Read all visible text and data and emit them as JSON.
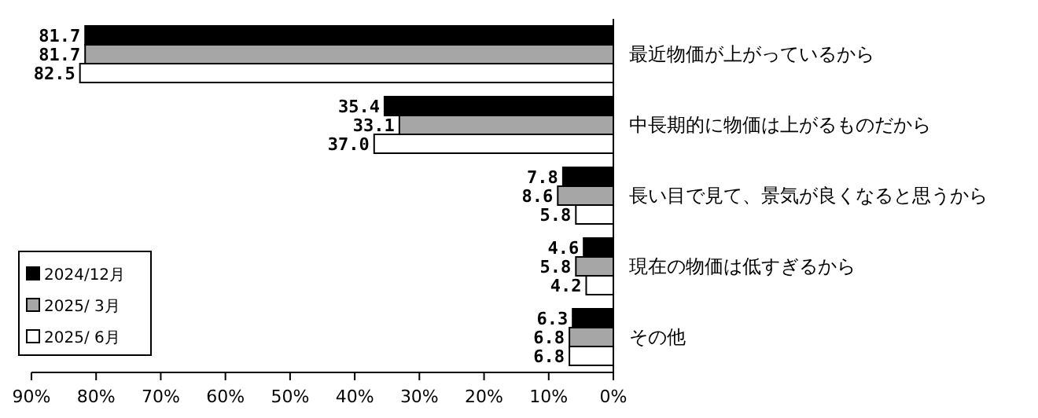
{
  "chart_data": {
    "type": "bar",
    "orientation": "horizontal",
    "categories": [
      "最近物価が上がっているから",
      "中長期的に物価は上がるものだから",
      "長い目で見て、景気が良くなると思うから",
      "現在の物価は低すぎるから",
      "その他"
    ],
    "series": [
      {
        "name": "2024/12月",
        "color": "#000000",
        "values": [
          81.7,
          35.4,
          7.8,
          4.6,
          6.3
        ],
        "value_labels": [
          "81.7",
          "35.4",
          "7.8",
          "4.6",
          "6.3"
        ]
      },
      {
        "name": "2025/ 3月",
        "color": "#a6a6a6",
        "values": [
          81.7,
          33.1,
          8.6,
          5.8,
          6.8
        ],
        "value_labels": [
          "81.7",
          "33.1",
          "8.6",
          "5.8",
          "6.8"
        ]
      },
      {
        "name": "2025/ 6月",
        "color": "#ffffff",
        "values": [
          82.5,
          37.0,
          5.8,
          4.2,
          6.8
        ],
        "value_labels": [
          "82.5",
          "37.0",
          "5.8",
          "4.2",
          "6.8"
        ]
      }
    ],
    "xlim": [
      90,
      0
    ],
    "xticks": [
      {
        "value": 90,
        "label": "90%"
      },
      {
        "value": 80,
        "label": "80%"
      },
      {
        "value": 70,
        "label": "70%"
      },
      {
        "value": 60,
        "label": "60%"
      },
      {
        "value": 50,
        "label": "50%"
      },
      {
        "value": 40,
        "label": "40%"
      },
      {
        "value": 30,
        "label": "30%"
      },
      {
        "value": 20,
        "label": "20%"
      },
      {
        "value": 10,
        "label": "10%"
      },
      {
        "value": 0,
        "label": "0%"
      }
    ],
    "legend": "bottom left",
    "grid": false
  }
}
